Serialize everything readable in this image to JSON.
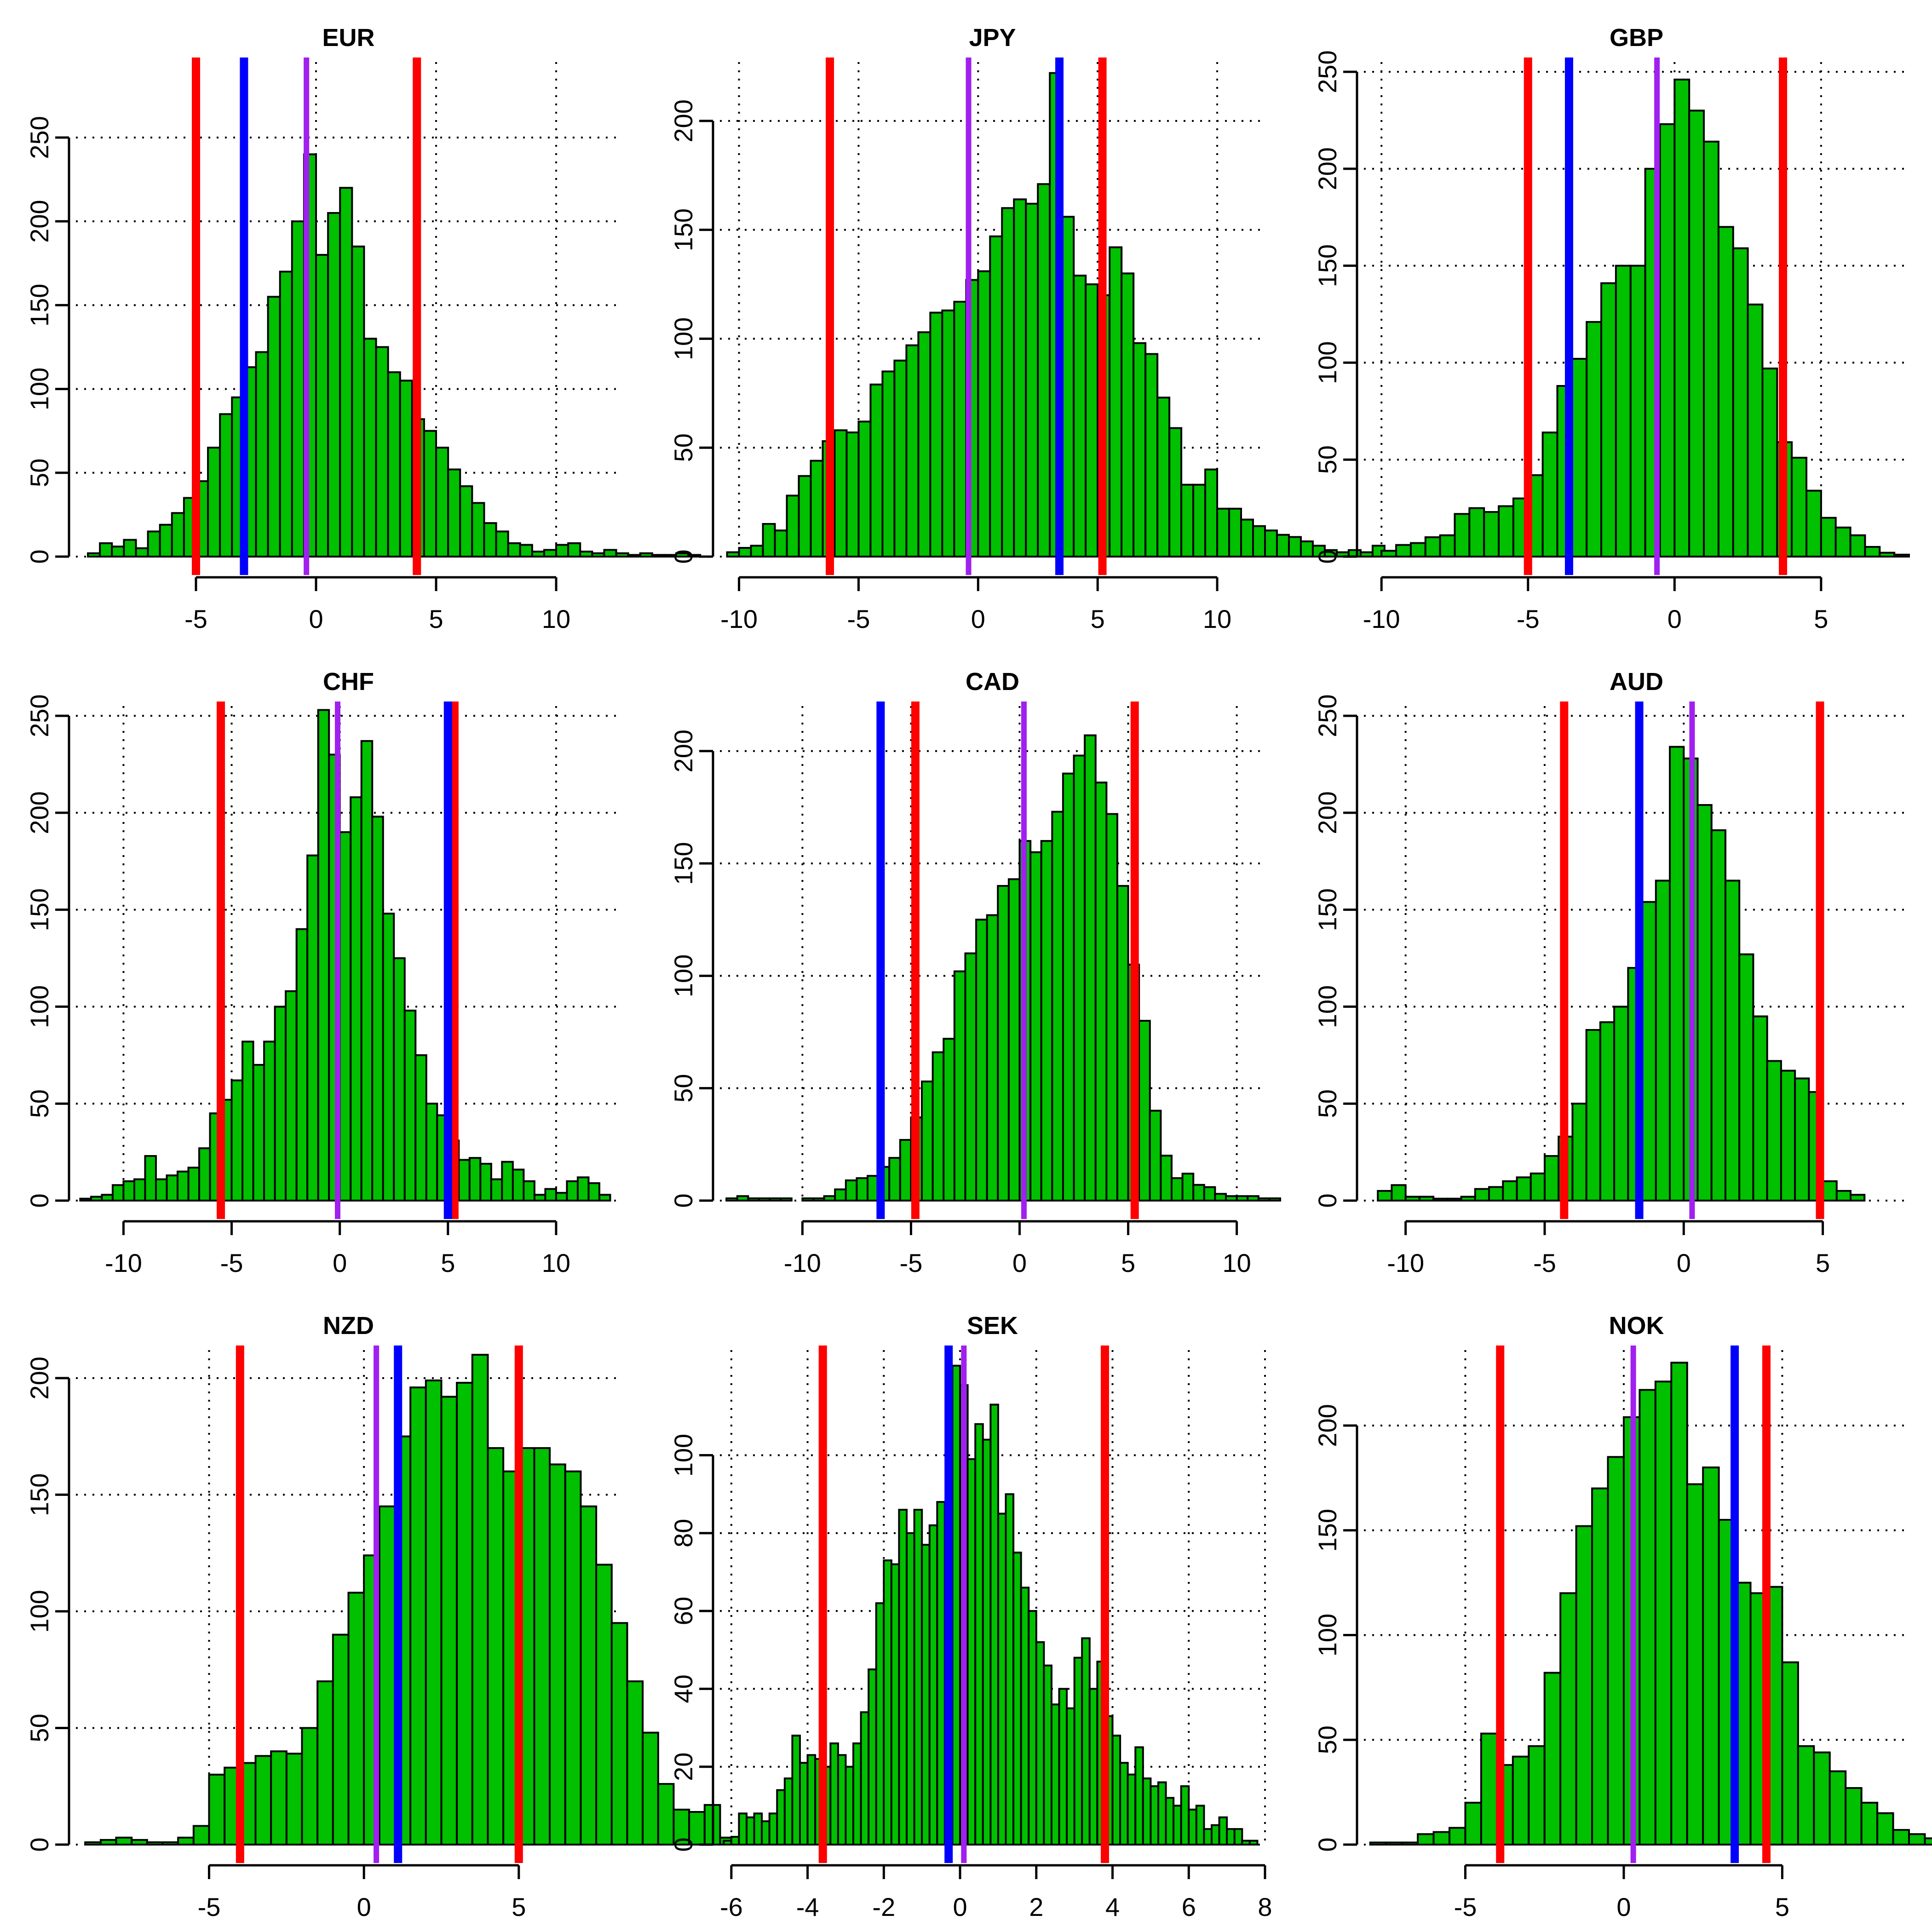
{
  "figure": {
    "layout": "3x3 grid of histograms"
  },
  "colors": {
    "bar_fill": "#00C000",
    "bar_stroke": "#000000",
    "red_line": "#FF0000",
    "blue_line": "#0000FF",
    "purple_line": "#A020F0",
    "grid": "#000000"
  },
  "chart_data": [
    {
      "type": "bar",
      "title": "EUR",
      "xlabel": "",
      "ylabel": "",
      "xlim": [
        -10,
        12.7
      ],
      "ylim": [
        0,
        295
      ],
      "xticks": [
        -5,
        0,
        5,
        10
      ],
      "yticks": [
        0,
        50,
        100,
        150,
        200,
        250
      ],
      "grid": true,
      "bin_start": -9.5,
      "bin_width": 0.5,
      "values": [
        2,
        8,
        6,
        10,
        5,
        15,
        19,
        26,
        35,
        45,
        65,
        85,
        95,
        113,
        122,
        155,
        170,
        200,
        240,
        180,
        205,
        220,
        185,
        130,
        125,
        110,
        105,
        82,
        75,
        65,
        52,
        42,
        32,
        20,
        15,
        8,
        7,
        3,
        4,
        7,
        8,
        3,
        2,
        4,
        2,
        1,
        2,
        1,
        1,
        2,
        1
      ],
      "lines": {
        "red": [
          -5.0,
          4.2
        ],
        "blue": [
          -3.0
        ],
        "purple": [
          -0.4
        ]
      }
    },
    {
      "type": "bar",
      "title": "JPY",
      "xlabel": "",
      "ylabel": "",
      "xlim": [
        -10.8,
        12.0
      ],
      "ylim": [
        0,
        227
      ],
      "xticks": [
        -10,
        -5,
        0,
        5,
        10
      ],
      "yticks": [
        0,
        50,
        100,
        150,
        200
      ],
      "grid": true,
      "bin_start": -10.5,
      "bin_width": 0.5,
      "values": [
        2,
        4,
        5,
        15,
        12,
        28,
        37,
        44,
        53,
        58,
        57,
        62,
        79,
        85,
        90,
        97,
        103,
        112,
        113,
        117,
        127,
        131,
        147,
        160,
        164,
        162,
        171,
        222,
        156,
        129,
        125,
        120,
        142,
        130,
        98,
        93,
        73,
        59,
        33,
        33,
        40,
        22,
        22,
        17,
        14,
        12,
        10,
        9,
        7,
        5,
        3,
        2,
        3,
        2,
        5
      ],
      "lines": {
        "red": [
          -6.2,
          5.2
        ],
        "blue": [
          3.4
        ],
        "purple": [
          -0.4
        ]
      }
    },
    {
      "type": "bar",
      "title": "GBP",
      "xlabel": "",
      "ylabel": "",
      "xlim": [
        -10.6,
        8.0
      ],
      "ylim": [
        0,
        255
      ],
      "xticks": [
        -10,
        -5,
        0,
        5
      ],
      "yticks": [
        0,
        50,
        100,
        150,
        200,
        250
      ],
      "grid": true,
      "bin_start": -10,
      "bin_width": 0.5,
      "values": [
        3,
        6,
        7,
        10,
        11,
        22,
        25,
        23,
        26,
        30,
        42,
        64,
        88,
        102,
        121,
        141,
        150,
        150,
        200,
        223,
        246,
        230,
        214,
        170,
        159,
        130,
        97,
        59,
        51,
        34,
        20,
        15,
        11,
        5,
        2,
        1
      ],
      "lines": {
        "red": [
          -5.0,
          3.7
        ],
        "blue": [
          -3.6
        ],
        "purple": [
          -0.6
        ]
      }
    },
    {
      "type": "bar",
      "title": "CHF",
      "xlabel": "",
      "ylabel": "",
      "xlim": [
        -12.2,
        13.0
      ],
      "ylim": [
        0,
        255
      ],
      "xticks": [
        -10,
        -5,
        0,
        5,
        10
      ],
      "yticks": [
        0,
        50,
        100,
        150,
        200,
        250
      ],
      "grid": true,
      "bin_start": -12,
      "bin_width": 0.5,
      "values": [
        1,
        2,
        3,
        8,
        10,
        11,
        23,
        11,
        13,
        15,
        17,
        27,
        45,
        52,
        62,
        82,
        70,
        82,
        100,
        108,
        140,
        178,
        253,
        230,
        190,
        208,
        237,
        198,
        148,
        125,
        98,
        75,
        50,
        44,
        31,
        21,
        22,
        19,
        11,
        20,
        16,
        10,
        3,
        6,
        4,
        10,
        12,
        9,
        3
      ],
      "lines": {
        "red": [
          -5.5,
          5.3
        ],
        "blue": [
          5.0
        ],
        "purple": [
          -0.1
        ]
      }
    },
    {
      "type": "bar",
      "title": "CAD",
      "xlabel": "",
      "ylabel": "",
      "xlim": [
        -13.8,
        11.3
      ],
      "ylim": [
        0,
        220
      ],
      "xticks": [
        -10,
        -5,
        0,
        5,
        10
      ],
      "yticks": [
        0,
        50,
        100,
        150,
        200
      ],
      "grid": true,
      "bin_start": -13.5,
      "bin_width": 0.5,
      "values": [
        1,
        2,
        1,
        1,
        1,
        1,
        0,
        1,
        1,
        2,
        5,
        9,
        10,
        11,
        15,
        19,
        27,
        37,
        53,
        66,
        72,
        102,
        110,
        125,
        127,
        140,
        143,
        160,
        155,
        160,
        173,
        190,
        198,
        207,
        186,
        172,
        140,
        105,
        80,
        40,
        20,
        10,
        12,
        7,
        6,
        3,
        2,
        2,
        2,
        1,
        1
      ],
      "lines": {
        "red": [
          -4.8,
          5.3
        ],
        "blue": [
          -6.4
        ],
        "purple": [
          0.2
        ]
      }
    },
    {
      "type": "bar",
      "title": "AUD",
      "xlabel": "",
      "ylabel": "",
      "xlim": [
        -11.5,
        8.1
      ],
      "ylim": [
        0,
        255
      ],
      "xticks": [
        -10,
        -5,
        0,
        5
      ],
      "yticks": [
        0,
        50,
        100,
        150,
        200,
        250
      ],
      "grid": true,
      "bin_start": -11,
      "bin_width": 0.5,
      "values": [
        5,
        8,
        2,
        2,
        1,
        1,
        2,
        6,
        7,
        10,
        12,
        14,
        23,
        33,
        50,
        88,
        92,
        100,
        120,
        154,
        165,
        234,
        228,
        204,
        191,
        165,
        127,
        95,
        72,
        67,
        63,
        56,
        10,
        5,
        3
      ],
      "lines": {
        "red": [
          -4.3,
          4.9
        ],
        "blue": [
          -1.6
        ],
        "purple": [
          0.3
        ]
      }
    },
    {
      "type": "bar",
      "title": "NZD",
      "xlabel": "",
      "ylabel": "",
      "xlim": [
        -9.3,
        8.3
      ],
      "ylim": [
        0,
        212
      ],
      "xticks": [
        -5,
        0,
        5
      ],
      "yticks": [
        0,
        50,
        100,
        150,
        200
      ],
      "grid": true,
      "bin_start": -9,
      "bin_width": 0.5,
      "values": [
        1,
        2,
        3,
        2,
        1,
        1,
        3,
        8,
        30,
        33,
        35,
        38,
        40,
        39,
        50,
        70,
        90,
        108,
        124,
        145,
        175,
        196,
        199,
        192,
        198,
        210,
        170,
        160,
        170,
        170,
        163,
        160,
        145,
        120,
        95,
        70,
        48,
        26,
        15,
        14,
        17,
        3,
        3
      ],
      "lines": {
        "red": [
          -4.0,
          5.0
        ],
        "blue": [
          1.1
        ],
        "purple": [
          0.4
        ]
      }
    },
    {
      "type": "bar",
      "title": "SEK",
      "xlabel": "",
      "ylabel": "",
      "xlim": [
        -6.3,
        8.0
      ],
      "ylim": [
        0,
        127
      ],
      "xticks": [
        -6,
        -4,
        -2,
        0,
        2,
        4,
        6,
        8
      ],
      "yticks": [
        0,
        20,
        40,
        60,
        80,
        100
      ],
      "grid": true,
      "bin_start": -6.2,
      "bin_width": 0.2,
      "values": [
        1,
        2,
        8,
        7,
        8,
        6,
        8,
        14,
        17,
        28,
        21,
        23,
        22,
        20,
        26,
        23,
        20,
        26,
        34,
        45,
        62,
        73,
        72,
        86,
        80,
        86,
        77,
        82,
        88,
        87,
        123,
        118,
        99,
        108,
        104,
        113,
        85,
        90,
        75,
        66,
        60,
        52,
        46,
        36,
        40,
        35,
        48,
        53,
        40,
        47,
        33,
        28,
        21,
        18,
        25,
        17,
        15,
        16,
        12,
        10,
        15,
        9,
        10,
        4,
        5,
        7,
        4,
        4,
        1,
        1
      ],
      "lines": {
        "red": [
          -3.6,
          3.8
        ],
        "blue": [
          -0.3
        ],
        "purple": [
          0.1
        ]
      }
    },
    {
      "type": "bar",
      "title": "NOK",
      "xlabel": "",
      "ylabel": "",
      "xlim": [
        -8.2,
        9.0
      ],
      "ylim": [
        0,
        236
      ],
      "xticks": [
        -5,
        0,
        5
      ],
      "yticks": [
        0,
        50,
        100,
        150,
        200
      ],
      "grid": true,
      "bin_start": -8,
      "bin_width": 0.5,
      "values": [
        1,
        1,
        1,
        5,
        6,
        8,
        20,
        53,
        38,
        42,
        47,
        82,
        120,
        152,
        170,
        185,
        204,
        217,
        221,
        230,
        172,
        180,
        155,
        125,
        120,
        123,
        87,
        47,
        44,
        35,
        27,
        20,
        15,
        7,
        5,
        3,
        2,
        1
      ],
      "lines": {
        "red": [
          -3.9,
          4.5
        ],
        "blue": [
          3.5
        ],
        "purple": [
          0.3
        ]
      }
    }
  ]
}
